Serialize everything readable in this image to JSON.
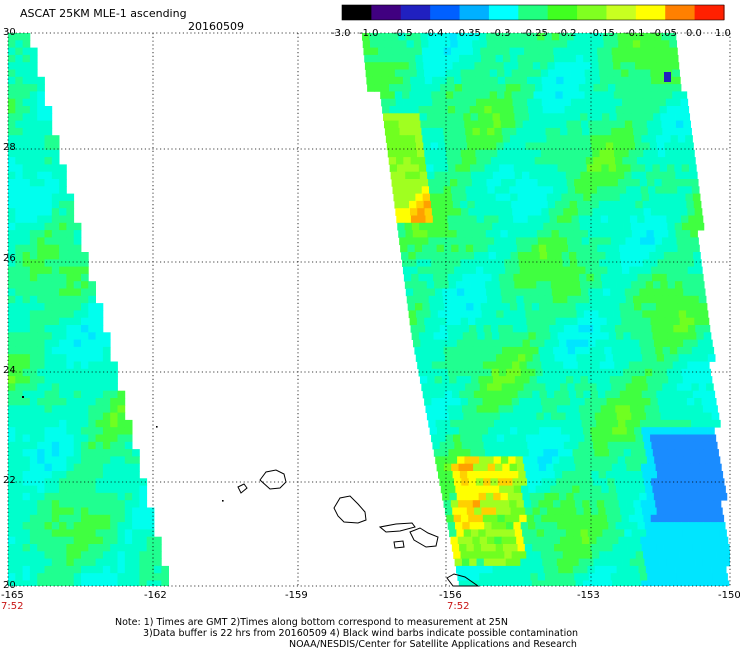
{
  "title": "ASCAT 25KM MLE-1 ascending",
  "date": "20160509",
  "colorbar": {
    "labels": [
      "-3.0",
      "-1.0",
      "-0.5",
      "-0.4",
      "-0.35",
      "-0.3",
      "-0.25",
      "-0.2",
      "-0.15",
      "-0.1",
      "-0.05",
      "0.0",
      "1.0"
    ],
    "colors": [
      "#000000",
      "#400080",
      "#2020c0",
      "#0060ff",
      "#00b0ff",
      "#00ffff",
      "#20ff80",
      "#40ff20",
      "#80ff20",
      "#c8ff20",
      "#ffff00",
      "#ff8000",
      "#ff2000"
    ]
  },
  "lat_labels": [
    "30",
    "28",
    "26",
    "24",
    "22",
    "20"
  ],
  "lon_labels": [
    "-165",
    "-162",
    "-159",
    "-156",
    "-153",
    "-150"
  ],
  "pass_times": [
    "7:52",
    "7:52"
  ],
  "notes": {
    "line1": "Note: 1) Times are GMT 2)Times along bottom correspond to measurement at 25N",
    "line2": "3)Data buffer is 22 hrs from 20160509 4) Black wind barbs indicate possible contamination",
    "line3": "NOAA/NESDIS/Center for Satellite Applications and Research"
  }
}
